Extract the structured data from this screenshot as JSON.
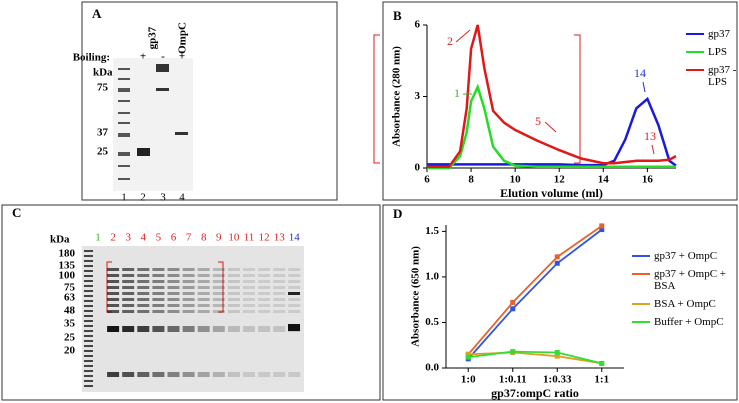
{
  "panel_labels": [
    "A",
    "B",
    "C",
    "D"
  ],
  "gel_a": {
    "boiling_label": "Boiling:",
    "boiling": [
      "+",
      "-",
      "+"
    ],
    "headers": [
      "gp37",
      "OmpC"
    ],
    "unit": "kDa",
    "markers": [
      75,
      37,
      25
    ],
    "lanes": [
      "1",
      "2",
      "3",
      "4"
    ]
  },
  "gel_c": {
    "unit": "kDa",
    "markers": [
      180,
      135,
      100,
      75,
      63,
      48,
      35,
      25,
      20
    ],
    "lanes": [
      {
        "label": "1",
        "color": "#22bb22"
      },
      {
        "label": "2",
        "color": "#dd2222"
      },
      {
        "label": "3",
        "color": "#dd2222"
      },
      {
        "label": "4",
        "color": "#dd2222"
      },
      {
        "label": "5",
        "color": "#dd2222"
      },
      {
        "label": "6",
        "color": "#dd2222"
      },
      {
        "label": "7",
        "color": "#dd2222"
      },
      {
        "label": "8",
        "color": "#dd2222"
      },
      {
        "label": "9",
        "color": "#dd2222"
      },
      {
        "label": "10",
        "color": "#dd2222"
      },
      {
        "label": "11",
        "color": "#dd2222"
      },
      {
        "label": "12",
        "color": "#dd2222"
      },
      {
        "label": "13",
        "color": "#dd2222"
      },
      {
        "label": "14",
        "color": "#2233cc"
      }
    ]
  },
  "chart_data": [
    {
      "type": "line",
      "x_label": "Elution volume (ml)",
      "y_label": "Absorbance (280 nm)",
      "x": [
        6,
        7,
        7.5,
        7.8,
        8,
        8.3,
        8.6,
        9,
        9.5,
        10,
        11,
        12,
        13,
        14,
        14.5,
        15,
        15.5,
        16,
        16.5,
        17,
        17.3
      ],
      "xlim": [
        6,
        17.3
      ],
      "xticks": [
        6,
        8,
        10,
        12,
        14,
        16
      ],
      "ylim": [
        0,
        6
      ],
      "yticks": [
        0,
        3,
        6
      ],
      "legend": "upper right",
      "series": [
        {
          "name": "gp37",
          "color": "#1a1adf",
          "values": [
            0.15,
            0.15,
            0.15,
            0.15,
            0.15,
            0.15,
            0.15,
            0.15,
            0.15,
            0.15,
            0.15,
            0.15,
            0.12,
            0.12,
            0.3,
            1.2,
            2.5,
            2.9,
            1.8,
            0.3,
            0.1
          ]
        },
        {
          "name": "LPS",
          "color": "#22dd22",
          "values": [
            0,
            0,
            0.5,
            1.5,
            2.8,
            3.4,
            2.5,
            0.9,
            0.3,
            0.1,
            0.05,
            0.05,
            0.05,
            0.05,
            0.05,
            0.05,
            0.05,
            0.05,
            0.05,
            0.05,
            0.05
          ]
        },
        {
          "name": "gp37 - LPS",
          "color": "#e01818",
          "values": [
            0.05,
            0.05,
            0.7,
            2.5,
            5,
            6,
            4.2,
            2.4,
            1.9,
            1.6,
            1.15,
            0.75,
            0.4,
            0.2,
            0.2,
            0.25,
            0.3,
            0.3,
            0.3,
            0.35,
            0.5
          ]
        }
      ],
      "annotations": [
        {
          "text": "1",
          "color": "#22bb22"
        },
        {
          "text": "2",
          "color": "#dd2222"
        },
        {
          "text": "5",
          "color": "#dd2222"
        },
        {
          "text": "14",
          "color": "#2233cc"
        },
        {
          "text": "13",
          "color": "#dd2222"
        }
      ]
    },
    {
      "type": "line",
      "x_label": "gp37:ompC ratio",
      "y_label": "Absorbance (650 nm)",
      "categories": [
        "1:0",
        "1:0.11",
        "1:0.33",
        "1:1"
      ],
      "ylim": [
        0,
        1.57
      ],
      "yticks": [
        {
          "value": 0,
          "label": "0.0"
        },
        {
          "value": 0.5,
          "label": "0.5"
        },
        {
          "value": 1,
          "label": "1.0"
        },
        {
          "value": 1.5,
          "label": "1.5"
        }
      ],
      "legend": "right",
      "series": [
        {
          "name": "gp37 + OmpC",
          "color": "#3355dd",
          "values": [
            0.1,
            0.65,
            1.15,
            1.52
          ]
        },
        {
          "name": "gp37 + OmpC + BSA",
          "color": "#e8602a",
          "values": [
            0.15,
            0.72,
            1.22,
            1.56
          ]
        },
        {
          "name": "BSA + OmpC",
          "color": "#e0a020",
          "values": [
            0.15,
            0.17,
            0.13,
            0.05
          ]
        },
        {
          "name": "Buffer + OmpC",
          "color": "#33dd33",
          "values": [
            0.12,
            0.18,
            0.17,
            0.05
          ]
        }
      ]
    }
  ]
}
